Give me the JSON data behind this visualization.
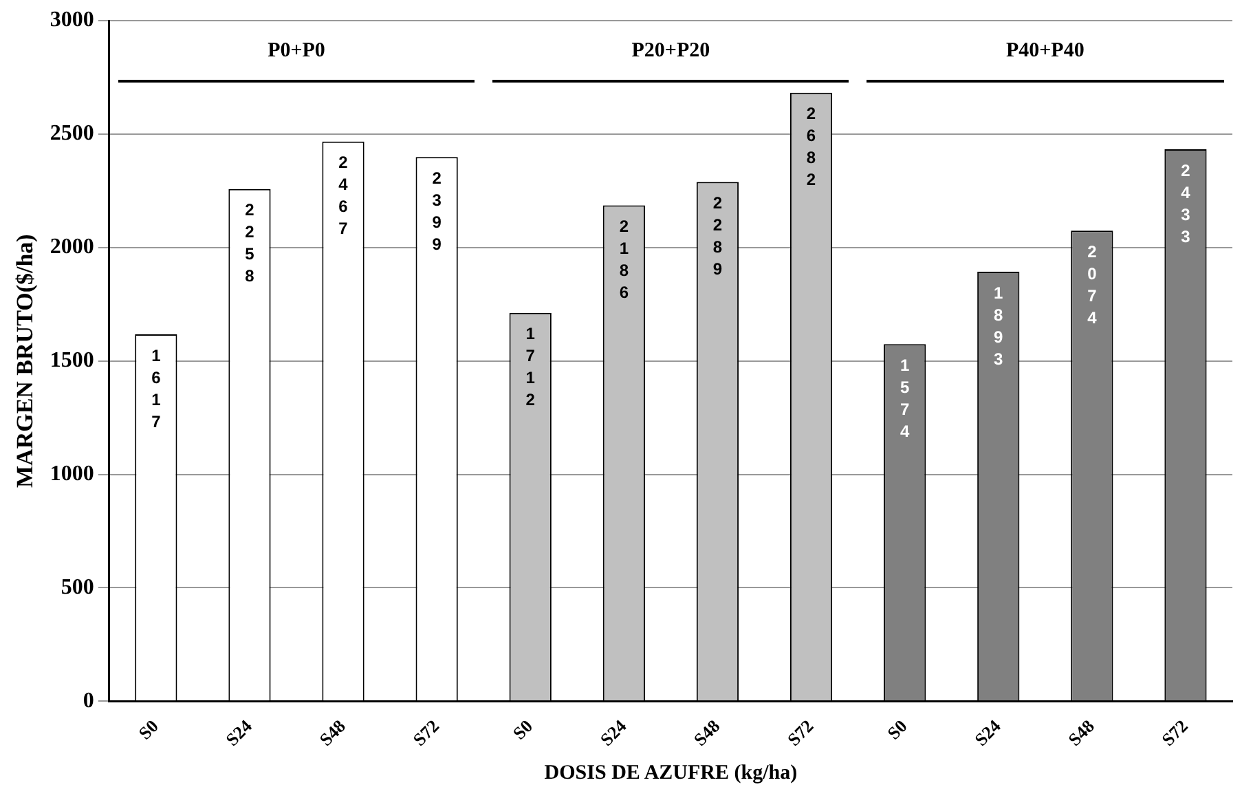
{
  "chart_data": {
    "type": "bar",
    "xlabel": "DOSIS DE AZUFRE (kg/ha)",
    "ylabel": "MARGEN BRUTO($/ha)",
    "categories": [
      "S0",
      "S24",
      "S48",
      "S72",
      "S0",
      "S24",
      "S48",
      "S72",
      "S0",
      "S24",
      "S48",
      "S72"
    ],
    "values": [
      1617,
      2258,
      2467,
      2399,
      1712,
      2186,
      2289,
      2682,
      1574,
      1893,
      2074,
      2433
    ],
    "colors": [
      "#ffffff",
      "#ffffff",
      "#ffffff",
      "#ffffff",
      "#c0c0c0",
      "#c0c0c0",
      "#c0c0c0",
      "#c0c0c0",
      "#808080",
      "#808080",
      "#808080",
      "#808080"
    ],
    "ylim": [
      0,
      3000
    ],
    "yticks": [
      0,
      500,
      1000,
      1500,
      2000,
      2500,
      3000
    ],
    "grid": "y",
    "legend": false,
    "data_labels": true,
    "annotations": [
      "P0+P0",
      "P20+P20",
      "P40+P40"
    ]
  }
}
